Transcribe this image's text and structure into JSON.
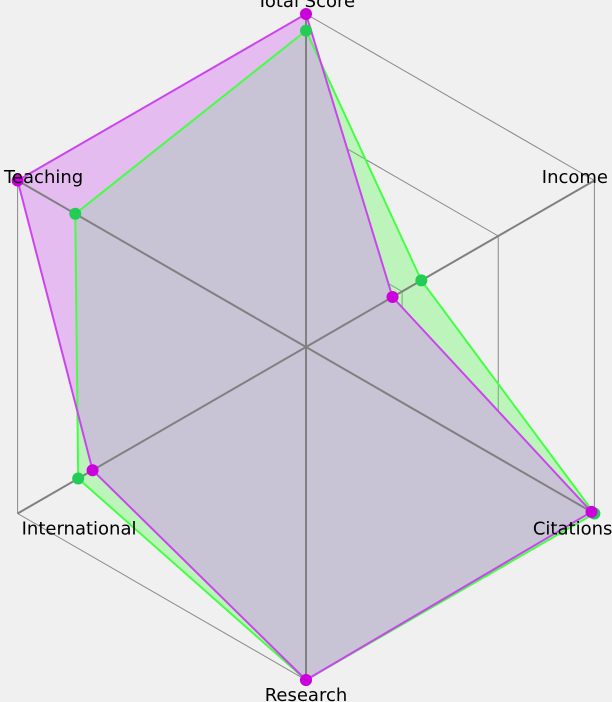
{
  "chart_data": {
    "type": "radar",
    "axes": [
      "Total Score",
      "Income",
      "Citations",
      "Research",
      "International",
      "Teaching"
    ],
    "range": [
      0,
      100
    ],
    "grid": true,
    "grid_levels": 3,
    "series": [
      {
        "values": [
          95,
          40,
          100,
          100,
          79,
          80
        ],
        "stroke": "#44ff44",
        "fill": "#44ff44",
        "marker": "#22cc55"
      },
      {
        "values": [
          100,
          30,
          99,
          100,
          74,
          100
        ],
        "stroke": "#cc44ee",
        "fill": "#cc44ee",
        "marker": "#cc00dd"
      }
    ]
  },
  "colors": {
    "background": "#f0f0f0",
    "grid": "#888888",
    "axis": "#808080",
    "overlap": "#c8c4d6"
  }
}
